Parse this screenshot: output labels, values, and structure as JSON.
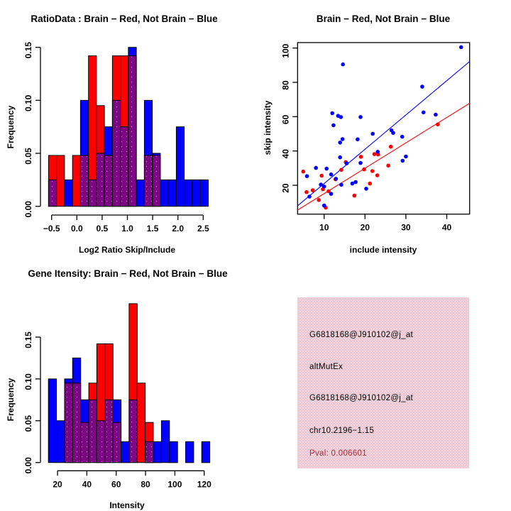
{
  "colors": {
    "red": "#FF0000",
    "blue": "#0000FF",
    "overlap": "#7D0684",
    "overlap_dot": "#B45CB4",
    "axis": "#000000"
  },
  "chart_data": [
    {
      "id": "ratio_hist",
      "type": "bar",
      "subtype": "overlaid-histogram",
      "title": "RatioData : Brain − Red, Not Brain − Blue",
      "xlabel": "Log2 Ratio Skip/Include",
      "ylabel": "Frequency",
      "x_tick_values": [
        -0.5,
        0.0,
        0.5,
        1.0,
        1.5,
        2.0,
        2.5
      ],
      "x_tick_labels": [
        "−0.5",
        "0.0",
        "0.5",
        "1.0",
        "1.5",
        "2.0",
        "2.5"
      ],
      "y_tick_values": [
        0.0,
        0.05,
        0.1,
        0.15
      ],
      "y_tick_labels": [
        "0.00",
        "0.05",
        "0.10",
        "0.15"
      ],
      "ylim": [
        0,
        0.15
      ],
      "bin_start": -0.56,
      "bin_width": 0.158,
      "series": [
        {
          "name": "Brain (red)",
          "values": [
            0.048,
            0.048,
            0,
            0.048,
            0.048,
            0.142,
            0.095,
            0.048,
            0.142,
            0.142,
            0.142,
            0,
            0.048,
            0.048,
            0,
            0,
            0,
            0,
            0,
            0
          ]
        },
        {
          "name": "Not Brain (blue)",
          "values": [
            0.025,
            0,
            0.025,
            0,
            0.1,
            0.025,
            0.05,
            0.075,
            0.1,
            0.075,
            0.15,
            0.025,
            0.1,
            0.05,
            0.025,
            0.025,
            0.075,
            0.025,
            0.025,
            0.025
          ]
        }
      ]
    },
    {
      "id": "intensity_scatter",
      "type": "scatter",
      "title": "Brain − Red, Not Brain − Blue",
      "xlabel": "include intensity",
      "ylabel": "skip intensity",
      "x_tick_values": [
        10,
        20,
        30,
        40
      ],
      "x_tick_labels": [
        "10",
        "20",
        "30",
        "40"
      ],
      "y_tick_values": [
        20,
        40,
        60,
        80,
        100
      ],
      "y_tick_labels": [
        "20",
        "40",
        "60",
        "80",
        "100"
      ],
      "xlim": [
        3.5,
        45.6
      ],
      "ylim": [
        4,
        103.5
      ],
      "series": [
        {
          "name": "Brain (red)",
          "points": [
            [
              37.8,
              55.5
            ],
            [
              26.3,
              42.5
            ],
            [
              22.3,
              38.2
            ],
            [
              23.2,
              38.0
            ],
            [
              19.0,
              36.6
            ],
            [
              15.3,
              33.5
            ],
            [
              25.7,
              31.5
            ],
            [
              14.2,
              29.0
            ],
            [
              19.8,
              29.3
            ],
            [
              21.8,
              28.3
            ],
            [
              23.0,
              25.8
            ],
            [
              4.9,
              28.0
            ],
            [
              9.4,
              25.6
            ],
            [
              12.8,
              23.5
            ],
            [
              21.2,
              21.0
            ],
            [
              7.2,
              17.1
            ],
            [
              9.7,
              17.7
            ],
            [
              11.1,
              16.5
            ],
            [
              5.7,
              16.0
            ],
            [
              17.4,
              14.0
            ],
            [
              8.7,
              11.4
            ],
            [
              10.4,
              7.0
            ]
          ]
        },
        {
          "name": "Not Brain (blue)",
          "points": [
            [
              43.5,
              100.5
            ],
            [
              14.6,
              90.5
            ],
            [
              34.0,
              77.5
            ],
            [
              12.0,
              62.0
            ],
            [
              13.4,
              60.5
            ],
            [
              14.1,
              59.8
            ],
            [
              18.9,
              59.8
            ],
            [
              34.3,
              62.5
            ],
            [
              37.3,
              61.2
            ],
            [
              12.3,
              55.0
            ],
            [
              26.5,
              52.0
            ],
            [
              26.9,
              50.5
            ],
            [
              21.9,
              50.0
            ],
            [
              29.1,
              48.3
            ],
            [
              18.2,
              46.8
            ],
            [
              14.5,
              46.9
            ],
            [
              13.9,
              44.9
            ],
            [
              23.1,
              39.5
            ],
            [
              13.9,
              36.3
            ],
            [
              30.0,
              36.8
            ],
            [
              29.2,
              34.3
            ],
            [
              15.5,
              32.8
            ],
            [
              18.9,
              33.0
            ],
            [
              8.0,
              30.1
            ],
            [
              10.6,
              29.7
            ],
            [
              11.7,
              26.3
            ],
            [
              5.8,
              25.3
            ],
            [
              12.9,
              23.8
            ],
            [
              14.2,
              20.3
            ],
            [
              16.9,
              21.0
            ],
            [
              17.7,
              21.9
            ],
            [
              9.2,
              20.4
            ],
            [
              10.0,
              19.3
            ],
            [
              20.3,
              18.0
            ],
            [
              6.4,
              13.4
            ],
            [
              11.7,
              15.0
            ],
            [
              10.0,
              8.2
            ]
          ]
        }
      ],
      "fit_lines": [
        {
          "name": "blue-fit",
          "x1": 3.55,
          "y1": 8.1,
          "x2": 45.6,
          "y2": 92.2
        },
        {
          "name": "red-fit",
          "x1": 3.55,
          "y1": 5.6,
          "x2": 45.6,
          "y2": 67.8
        }
      ]
    },
    {
      "id": "gene_hist",
      "type": "bar",
      "subtype": "overlaid-histogram",
      "title": "Gene Itensity: Brain − Red, Not Brain − Blue",
      "xlabel": "Intensity",
      "ylabel": "Frequency",
      "x_tick_values": [
        20,
        40,
        60,
        80,
        100,
        120
      ],
      "x_tick_labels": [
        "20",
        "40",
        "60",
        "80",
        "100",
        "120"
      ],
      "y_tick_values": [
        0.0,
        0.05,
        0.1,
        0.15
      ],
      "y_tick_labels": [
        "0.00",
        "0.05",
        "0.10",
        "0.15"
      ],
      "ylim": [
        0,
        0.15
      ],
      "bin_start": 13.8,
      "bin_width": 5.5,
      "series": [
        {
          "name": "Brain (red)",
          "values": [
            0,
            0,
            0.095,
            0.095,
            0.048,
            0.095,
            0.142,
            0.142,
            0.048,
            0,
            0.19,
            0.095,
            0.048,
            0,
            0,
            0,
            0,
            0,
            0,
            0
          ]
        },
        {
          "name": "Not Brain (blue)",
          "values": [
            0.1,
            0.05,
            0.1,
            0.125,
            0.075,
            0.075,
            0.05,
            0.075,
            0.075,
            0.025,
            0.075,
            0,
            0.025,
            0.025,
            0.05,
            0.025,
            0,
            0.025,
            0,
            0.025
          ]
        }
      ]
    }
  ],
  "info_panel": {
    "background": "#F2C3CE",
    "lines": [
      {
        "text": "G6818168@J910102@j_at",
        "color": "#000000"
      },
      {
        "text": "altMutEx",
        "color": "#000000"
      },
      {
        "text": "G6818168@J910102@j_at",
        "color": "#000000"
      },
      {
        "text": "chr10.2196−1.15",
        "color": "#000000"
      },
      {
        "text": "Pval: 0.006601",
        "color": "#AC2B3C"
      }
    ]
  }
}
